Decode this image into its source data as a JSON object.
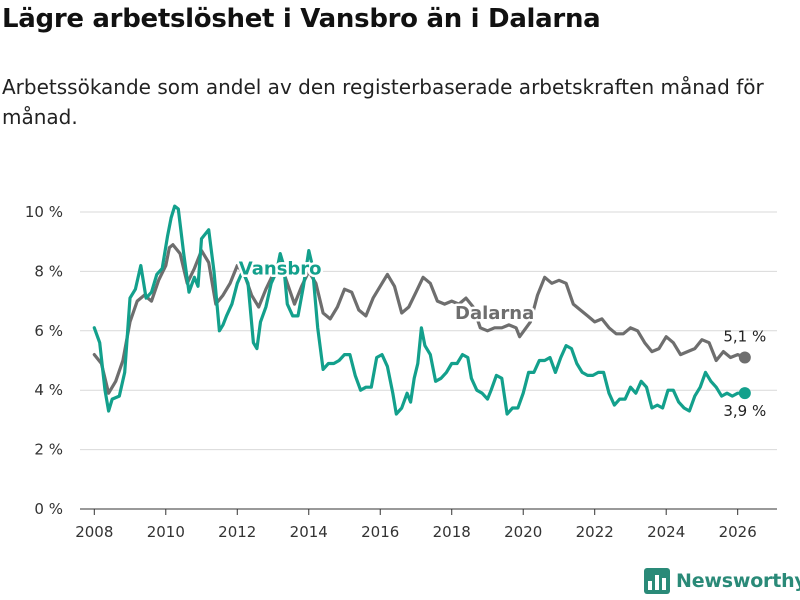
{
  "header": {
    "title": "Lägre arbetslöshet i Vansbro än i Dalarna",
    "subtitle": "Arbetssökande som andel av den registerbaserade arbetskraften månad för månad."
  },
  "brand": {
    "name": "Newsworthy",
    "icon": "bar-chart-logo-icon",
    "color": "#2a8a78"
  },
  "chart_data": {
    "type": "line",
    "title": "Lägre arbetslöshet i Vansbro än i Dalarna",
    "xlabel": "",
    "ylabel": "",
    "xlim": [
      2007.6,
      2027.1
    ],
    "ylim": [
      0,
      10
    ],
    "x_ticks": [
      2008,
      2010,
      2012,
      2014,
      2016,
      2018,
      2020,
      2022,
      2024,
      2026
    ],
    "x_tick_labels": [
      "2008",
      "2010",
      "2012",
      "2014",
      "2016",
      "2018",
      "2020",
      "2022",
      "2024",
      "2026"
    ],
    "y_ticks": [
      0,
      2,
      4,
      6,
      8,
      10
    ],
    "y_tick_labels": [
      "0 %",
      "2 %",
      "4 %",
      "6 %",
      "8 %",
      "10 %"
    ],
    "grid": "horizontal",
    "series": [
      {
        "name": "Dalarna",
        "color": "#6e6e6e",
        "label": "Dalarna",
        "end_label": "5,1 %",
        "points": [
          [
            2008.0,
            5.2
          ],
          [
            2008.2,
            4.9
          ],
          [
            2008.4,
            3.9
          ],
          [
            2008.6,
            4.3
          ],
          [
            2008.8,
            5.0
          ],
          [
            2009.0,
            6.3
          ],
          [
            2009.2,
            7.0
          ],
          [
            2009.4,
            7.2
          ],
          [
            2009.6,
            7.0
          ],
          [
            2009.8,
            7.7
          ],
          [
            2010.0,
            8.2
          ],
          [
            2010.1,
            8.8
          ],
          [
            2010.2,
            8.9
          ],
          [
            2010.4,
            8.6
          ],
          [
            2010.6,
            7.6
          ],
          [
            2010.8,
            8.1
          ],
          [
            2011.0,
            8.7
          ],
          [
            2011.2,
            8.3
          ],
          [
            2011.4,
            6.9
          ],
          [
            2011.6,
            7.2
          ],
          [
            2011.8,
            7.6
          ],
          [
            2012.0,
            8.2
          ],
          [
            2012.2,
            7.9
          ],
          [
            2012.4,
            7.2
          ],
          [
            2012.6,
            6.8
          ],
          [
            2012.8,
            7.4
          ],
          [
            2013.0,
            7.9
          ],
          [
            2013.2,
            8.3
          ],
          [
            2013.4,
            7.6
          ],
          [
            2013.6,
            6.9
          ],
          [
            2013.8,
            7.5
          ],
          [
            2014.0,
            8.0
          ],
          [
            2014.2,
            7.6
          ],
          [
            2014.4,
            6.6
          ],
          [
            2014.6,
            6.4
          ],
          [
            2014.8,
            6.8
          ],
          [
            2015.0,
            7.4
          ],
          [
            2015.2,
            7.3
          ],
          [
            2015.4,
            6.7
          ],
          [
            2015.6,
            6.5
          ],
          [
            2015.8,
            7.1
          ],
          [
            2016.0,
            7.5
          ],
          [
            2016.2,
            7.9
          ],
          [
            2016.4,
            7.5
          ],
          [
            2016.6,
            6.6
          ],
          [
            2016.8,
            6.8
          ],
          [
            2017.0,
            7.3
          ],
          [
            2017.2,
            7.8
          ],
          [
            2017.4,
            7.6
          ],
          [
            2017.6,
            7.0
          ],
          [
            2017.8,
            6.9
          ],
          [
            2018.0,
            7.0
          ],
          [
            2018.2,
            6.9
          ],
          [
            2018.4,
            7.1
          ],
          [
            2018.6,
            6.8
          ],
          [
            2018.8,
            6.1
          ],
          [
            2019.0,
            6.0
          ],
          [
            2019.2,
            6.1
          ],
          [
            2019.4,
            6.1
          ],
          [
            2019.6,
            6.2
          ],
          [
            2019.8,
            6.1
          ],
          [
            2019.9,
            5.8
          ],
          [
            2020.2,
            6.3
          ],
          [
            2020.4,
            7.2
          ],
          [
            2020.6,
            7.8
          ],
          [
            2020.8,
            7.6
          ],
          [
            2021.0,
            7.7
          ],
          [
            2021.2,
            7.6
          ],
          [
            2021.4,
            6.9
          ],
          [
            2021.6,
            6.7
          ],
          [
            2021.8,
            6.5
          ],
          [
            2022.0,
            6.3
          ],
          [
            2022.2,
            6.4
          ],
          [
            2022.4,
            6.1
          ],
          [
            2022.6,
            5.9
          ],
          [
            2022.8,
            5.9
          ],
          [
            2023.0,
            6.1
          ],
          [
            2023.2,
            6.0
          ],
          [
            2023.4,
            5.6
          ],
          [
            2023.6,
            5.3
          ],
          [
            2023.8,
            5.4
          ],
          [
            2024.0,
            5.8
          ],
          [
            2024.2,
            5.6
          ],
          [
            2024.4,
            5.2
          ],
          [
            2024.6,
            5.3
          ],
          [
            2024.8,
            5.4
          ],
          [
            2025.0,
            5.7
          ],
          [
            2025.2,
            5.6
          ],
          [
            2025.4,
            5.0
          ],
          [
            2025.6,
            5.3
          ],
          [
            2025.8,
            5.1
          ],
          [
            2026.0,
            5.2
          ],
          [
            2026.2,
            5.1
          ]
        ]
      },
      {
        "name": "Vansbro",
        "color": "#13a08c",
        "label": "Vansbro",
        "end_label": "3,9 %",
        "points": [
          [
            2008.0,
            6.1
          ],
          [
            2008.15,
            5.6
          ],
          [
            2008.3,
            4.0
          ],
          [
            2008.4,
            3.3
          ],
          [
            2008.5,
            3.7
          ],
          [
            2008.7,
            3.8
          ],
          [
            2008.85,
            4.6
          ],
          [
            2009.0,
            7.1
          ],
          [
            2009.15,
            7.4
          ],
          [
            2009.3,
            8.2
          ],
          [
            2009.45,
            7.1
          ],
          [
            2009.6,
            7.3
          ],
          [
            2009.75,
            7.9
          ],
          [
            2009.9,
            8.1
          ],
          [
            2010.05,
            9.2
          ],
          [
            2010.15,
            9.8
          ],
          [
            2010.25,
            10.2
          ],
          [
            2010.35,
            10.1
          ],
          [
            2010.5,
            8.6
          ],
          [
            2010.65,
            7.3
          ],
          [
            2010.8,
            7.8
          ],
          [
            2010.9,
            7.5
          ],
          [
            2011.0,
            9.1
          ],
          [
            2011.2,
            9.4
          ],
          [
            2011.35,
            8.0
          ],
          [
            2011.5,
            6.0
          ],
          [
            2011.6,
            6.2
          ],
          [
            2011.7,
            6.5
          ],
          [
            2011.85,
            6.9
          ],
          [
            2012.0,
            7.6
          ],
          [
            2012.15,
            8.0
          ],
          [
            2012.3,
            7.6
          ],
          [
            2012.45,
            5.6
          ],
          [
            2012.55,
            5.4
          ],
          [
            2012.65,
            6.3
          ],
          [
            2012.8,
            6.8
          ],
          [
            2012.95,
            7.6
          ],
          [
            2013.1,
            8.0
          ],
          [
            2013.2,
            8.6
          ],
          [
            2013.3,
            8.2
          ],
          [
            2013.4,
            6.9
          ],
          [
            2013.55,
            6.5
          ],
          [
            2013.7,
            6.5
          ],
          [
            2013.85,
            7.5
          ],
          [
            2014.0,
            8.7
          ],
          [
            2014.1,
            8.2
          ],
          [
            2014.25,
            6.1
          ],
          [
            2014.4,
            4.7
          ],
          [
            2014.55,
            4.9
          ],
          [
            2014.7,
            4.9
          ],
          [
            2014.85,
            5.0
          ],
          [
            2015.0,
            5.2
          ],
          [
            2015.15,
            5.2
          ],
          [
            2015.3,
            4.5
          ],
          [
            2015.45,
            4.0
          ],
          [
            2015.6,
            4.1
          ],
          [
            2015.75,
            4.1
          ],
          [
            2015.9,
            5.1
          ],
          [
            2016.05,
            5.2
          ],
          [
            2016.2,
            4.8
          ],
          [
            2016.35,
            3.9
          ],
          [
            2016.45,
            3.2
          ],
          [
            2016.6,
            3.4
          ],
          [
            2016.75,
            3.9
          ],
          [
            2016.85,
            3.6
          ],
          [
            2016.95,
            4.4
          ],
          [
            2017.05,
            4.9
          ],
          [
            2017.15,
            6.1
          ],
          [
            2017.25,
            5.5
          ],
          [
            2017.4,
            5.2
          ],
          [
            2017.55,
            4.3
          ],
          [
            2017.7,
            4.4
          ],
          [
            2017.85,
            4.6
          ],
          [
            2018.0,
            4.9
          ],
          [
            2018.15,
            4.9
          ],
          [
            2018.3,
            5.2
          ],
          [
            2018.45,
            5.1
          ],
          [
            2018.55,
            4.4
          ],
          [
            2018.7,
            4.0
          ],
          [
            2018.85,
            3.9
          ],
          [
            2019.0,
            3.7
          ],
          [
            2019.1,
            4.0
          ],
          [
            2019.25,
            4.5
          ],
          [
            2019.4,
            4.4
          ],
          [
            2019.55,
            3.2
          ],
          [
            2019.7,
            3.4
          ],
          [
            2019.85,
            3.4
          ],
          [
            2020.0,
            3.9
          ],
          [
            2020.15,
            4.6
          ],
          [
            2020.3,
            4.6
          ],
          [
            2020.45,
            5.0
          ],
          [
            2020.6,
            5.0
          ],
          [
            2020.75,
            5.1
          ],
          [
            2020.9,
            4.6
          ],
          [
            2021.05,
            5.1
          ],
          [
            2021.2,
            5.5
          ],
          [
            2021.35,
            5.4
          ],
          [
            2021.5,
            4.9
          ],
          [
            2021.65,
            4.6
          ],
          [
            2021.8,
            4.5
          ],
          [
            2021.95,
            4.5
          ],
          [
            2022.1,
            4.6
          ],
          [
            2022.25,
            4.6
          ],
          [
            2022.4,
            3.9
          ],
          [
            2022.55,
            3.5
          ],
          [
            2022.7,
            3.7
          ],
          [
            2022.85,
            3.7
          ],
          [
            2023.0,
            4.1
          ],
          [
            2023.15,
            3.9
          ],
          [
            2023.3,
            4.3
          ],
          [
            2023.45,
            4.1
          ],
          [
            2023.6,
            3.4
          ],
          [
            2023.75,
            3.5
          ],
          [
            2023.9,
            3.4
          ],
          [
            2024.05,
            4.0
          ],
          [
            2024.2,
            4.0
          ],
          [
            2024.35,
            3.6
          ],
          [
            2024.5,
            3.4
          ],
          [
            2024.65,
            3.3
          ],
          [
            2024.8,
            3.8
          ],
          [
            2024.95,
            4.1
          ],
          [
            2025.1,
            4.6
          ],
          [
            2025.25,
            4.3
          ],
          [
            2025.4,
            4.1
          ],
          [
            2025.55,
            3.8
          ],
          [
            2025.7,
            3.9
          ],
          [
            2025.85,
            3.8
          ],
          [
            2026.0,
            3.9
          ],
          [
            2026.2,
            3.9
          ]
        ]
      }
    ]
  }
}
